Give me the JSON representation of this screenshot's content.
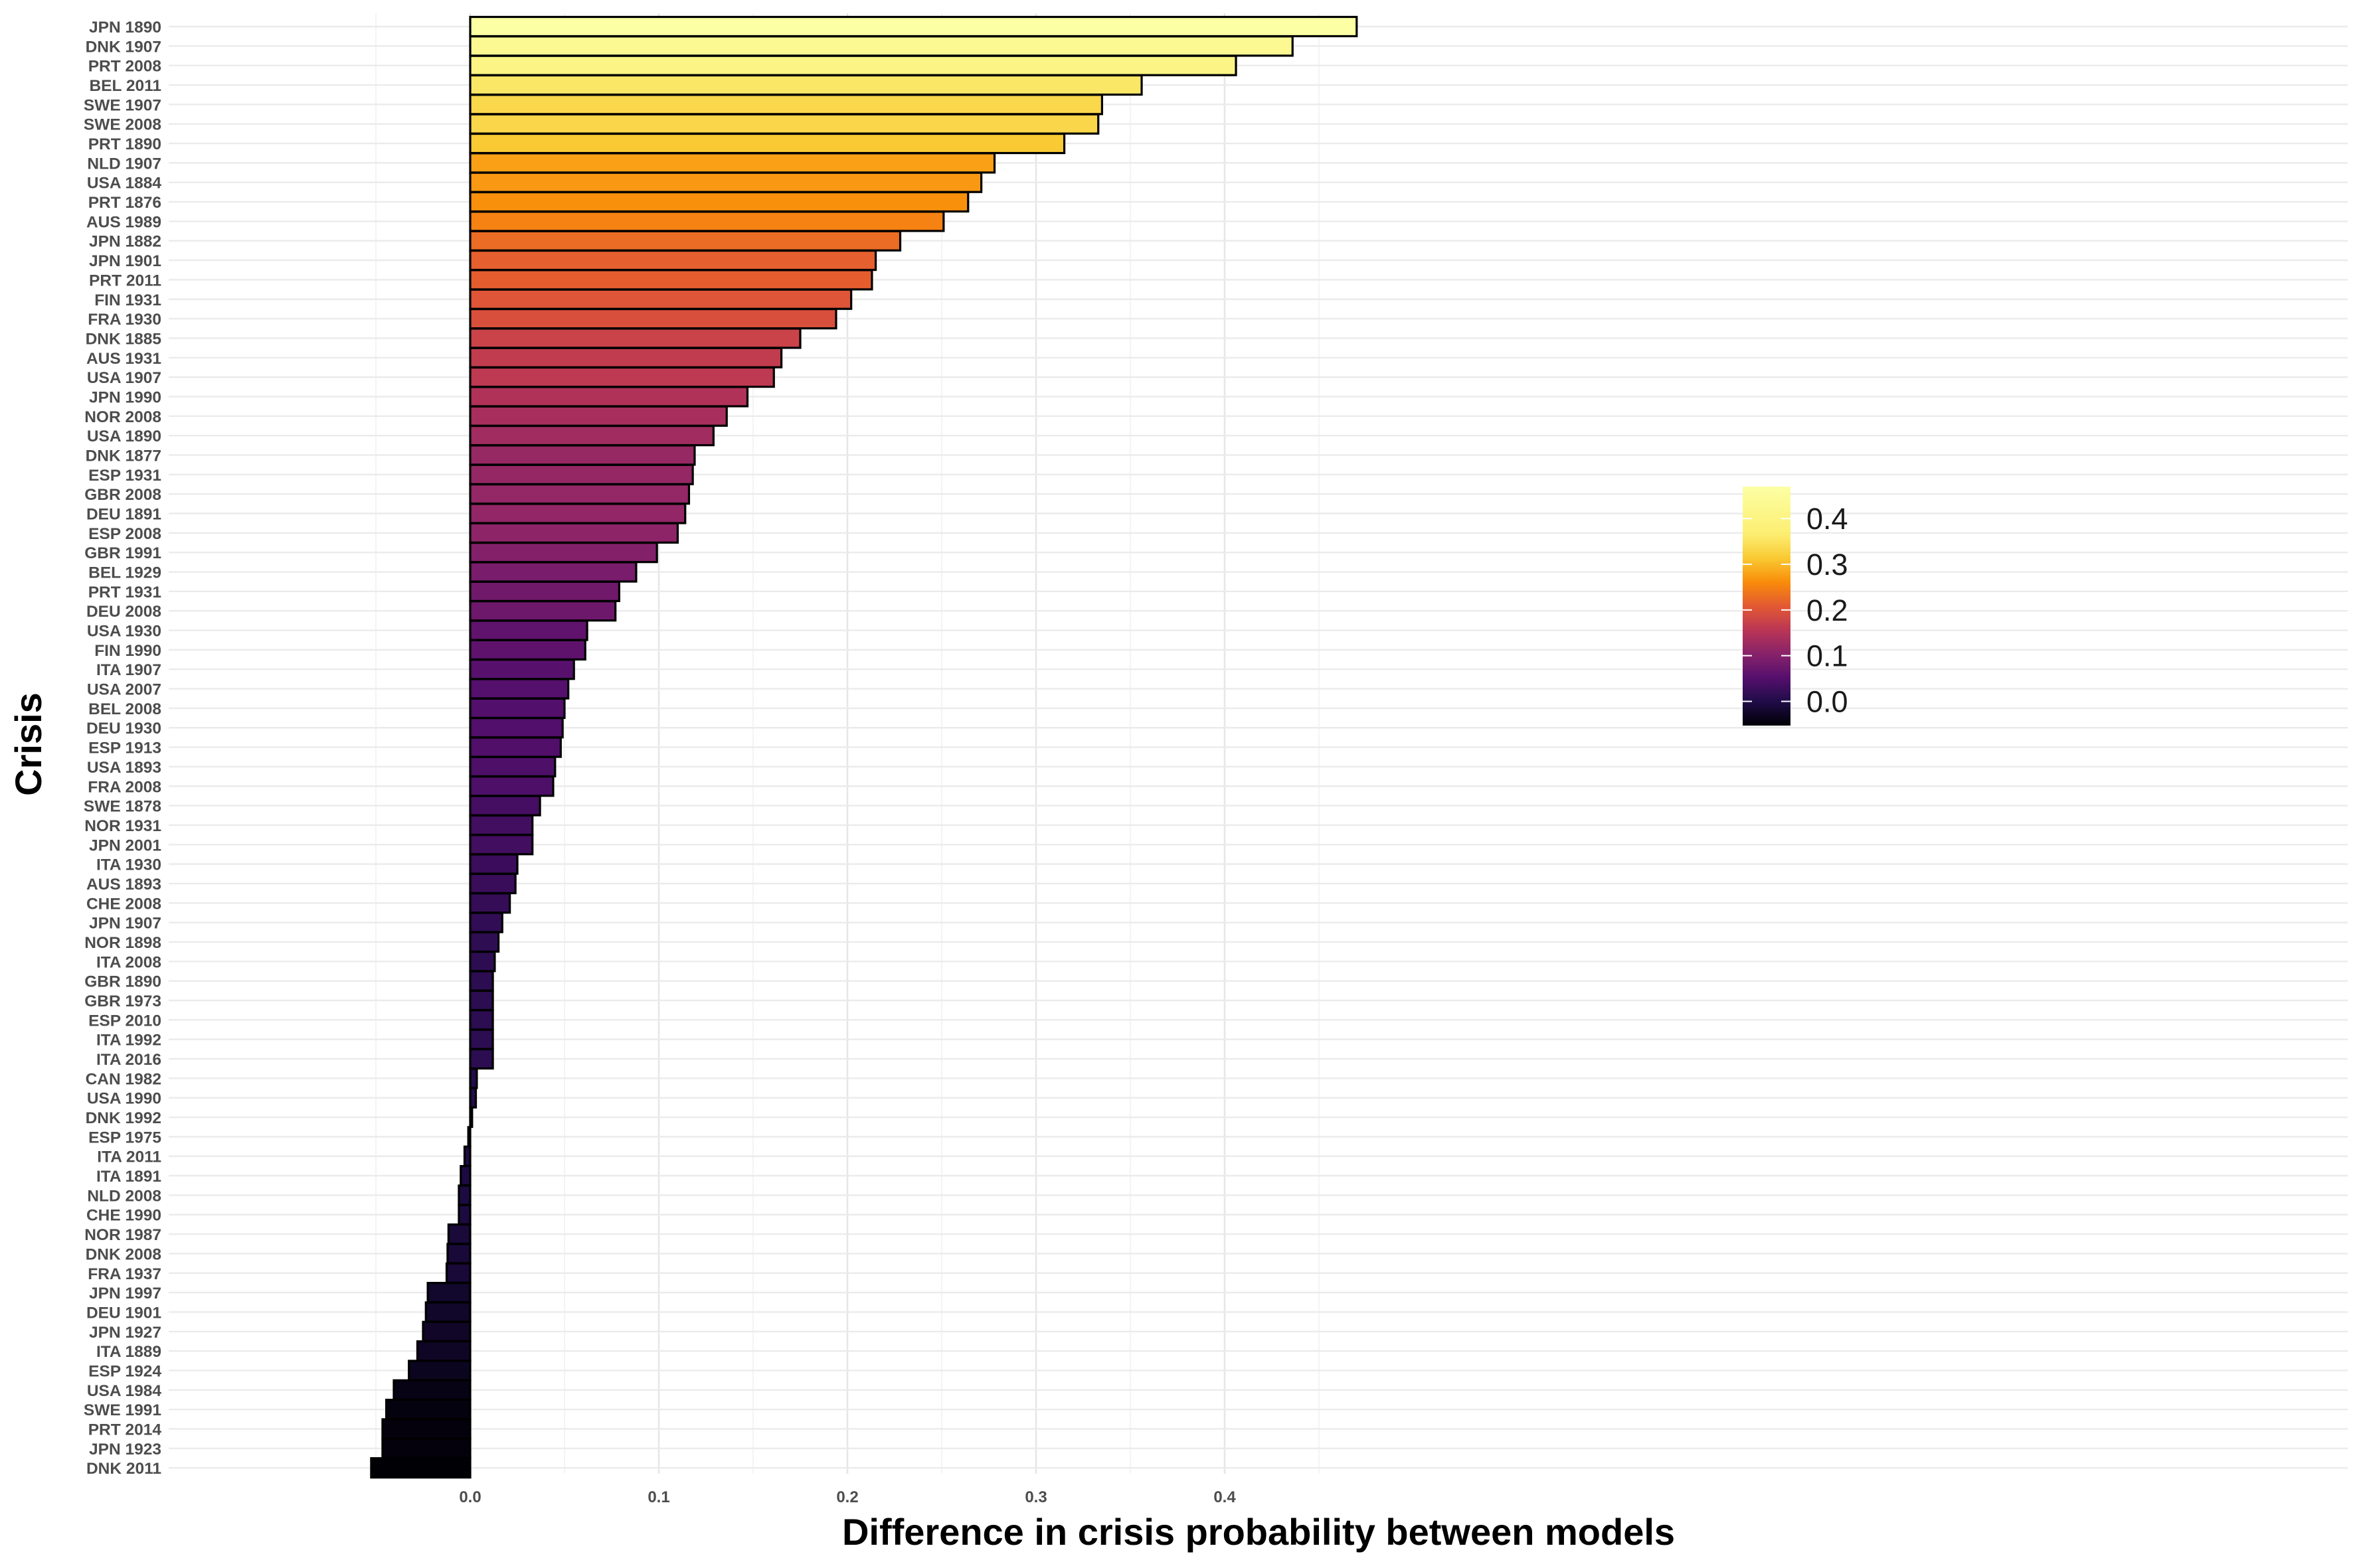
{
  "chart_data": {
    "type": "bar",
    "orientation": "horizontal",
    "title": "",
    "xlabel": "Difference in crisis probability between models",
    "ylabel": "Crisis",
    "xlim": [
      -0.078,
      0.495
    ],
    "x_ticks": [
      0.0,
      0.1,
      0.2,
      0.3,
      0.4
    ],
    "x_tick_labels": [
      "0.0",
      "0.1",
      "0.2",
      "0.3",
      "0.4"
    ],
    "grid": true,
    "colormap": "inferno",
    "legend": {
      "position": "right",
      "type": "colorbar",
      "min": -0.053,
      "max": 0.47,
      "ticks": [
        0.0,
        0.1,
        0.2,
        0.3,
        0.4
      ],
      "tick_labels": [
        "0.0",
        "0.1",
        "0.2",
        "0.3",
        "0.4"
      ]
    },
    "categories": [
      "JPN 1890",
      "DNK 1907",
      "PRT 2008",
      "BEL 2011",
      "SWE 1907",
      "SWE 2008",
      "PRT 1890",
      "NLD 1907",
      "USA 1884",
      "PRT 1876",
      "AUS 1989",
      "JPN 1882",
      "JPN 1901",
      "PRT 2011",
      "FIN 1931",
      "FRA 1930",
      "DNK 1885",
      "AUS 1931",
      "USA 1907",
      "JPN 1990",
      "NOR 2008",
      "USA 1890",
      "DNK 1877",
      "ESP 1931",
      "GBR 2008",
      "DEU 1891",
      "ESP 2008",
      "GBR 1991",
      "BEL 1929",
      "PRT 1931",
      "DEU 2008",
      "USA 1930",
      "FIN 1990",
      "ITA 1907",
      "USA 2007",
      "BEL 2008",
      "DEU 1930",
      "ESP 1913",
      "USA 1893",
      "FRA 2008",
      "SWE 1878",
      "NOR 1931",
      "JPN 2001",
      "ITA 1930",
      "AUS 1893",
      "CHE 2008",
      "JPN 1907",
      "NOR 1898",
      "ITA 2008",
      "GBR 1890",
      "GBR 1973",
      "ESP 2010",
      "ITA 1992",
      "ITA 2016",
      "CAN 1982",
      "USA 1990",
      "DNK 1992",
      "ESP 1975",
      "ITA 2011",
      "ITA 1891",
      "NLD 2008",
      "CHE 1990",
      "NOR 1987",
      "DNK 2008",
      "FRA 1937",
      "JPN 1997",
      "DEU 1901",
      "JPN 1927",
      "ITA 1889",
      "ESP 1924",
      "USA 1984",
      "SWE 1991",
      "PRT 2014",
      "JPN 1923",
      "DNK 2011"
    ],
    "values": [
      0.47,
      0.436,
      0.406,
      0.356,
      0.335,
      0.333,
      0.315,
      0.278,
      0.271,
      0.264,
      0.251,
      0.228,
      0.215,
      0.213,
      0.202,
      0.194,
      0.175,
      0.165,
      0.161,
      0.147,
      0.136,
      0.129,
      0.119,
      0.118,
      0.116,
      0.114,
      0.11,
      0.099,
      0.088,
      0.079,
      0.077,
      0.062,
      0.061,
      0.055,
      0.052,
      0.05,
      0.049,
      0.048,
      0.045,
      0.044,
      0.037,
      0.033,
      0.033,
      0.025,
      0.024,
      0.021,
      0.017,
      0.015,
      0.013,
      0.012,
      0.012,
      0.012,
      0.012,
      0.012,
      0.0035,
      0.003,
      0.001,
      -0.001,
      -0.003,
      -0.005,
      -0.006,
      -0.006,
      -0.0115,
      -0.012,
      -0.0125,
      -0.0225,
      -0.0235,
      -0.025,
      -0.028,
      -0.0325,
      -0.0405,
      -0.0445,
      -0.0465,
      -0.0465,
      -0.0525
    ]
  }
}
